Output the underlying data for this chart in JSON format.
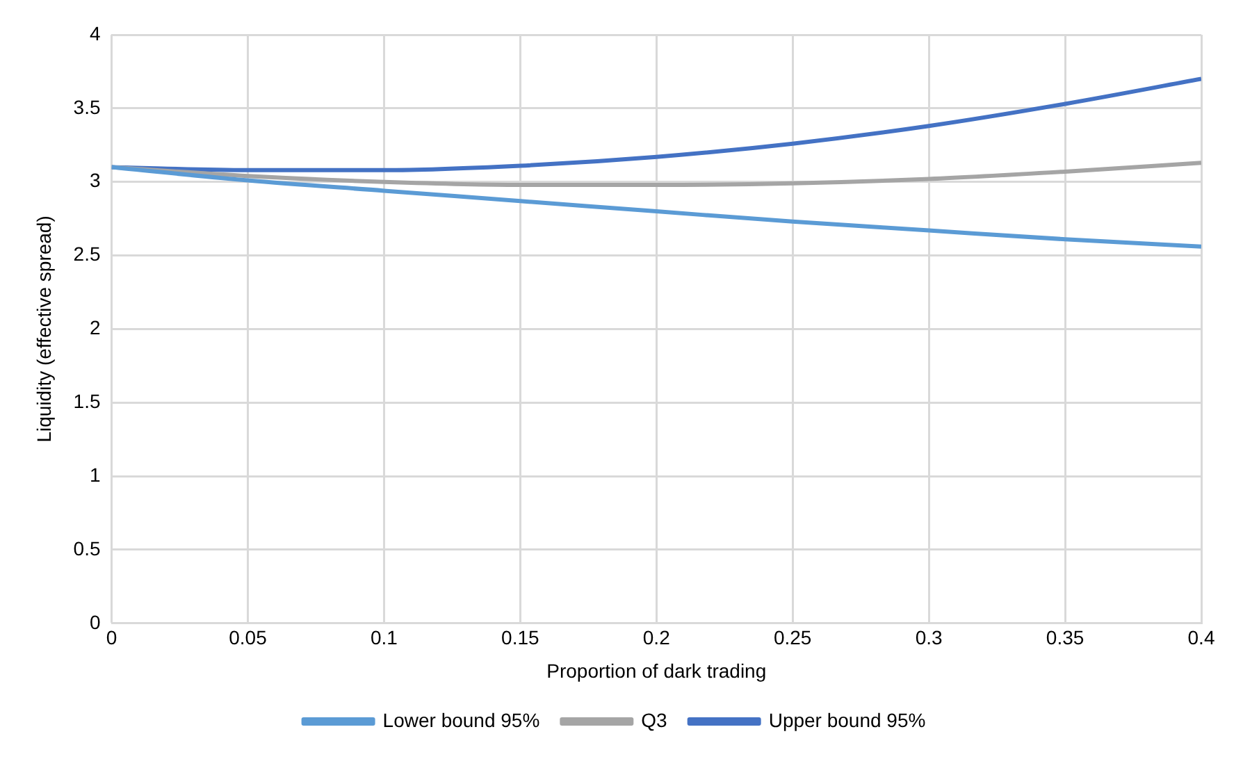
{
  "chart_data": {
    "type": "line",
    "xlabel": "Proportion of dark trading",
    "ylabel": "Liquidity (effective spread)",
    "x": [
      0,
      0.05,
      0.1,
      0.15,
      0.2,
      0.25,
      0.3,
      0.35,
      0.4
    ],
    "series": [
      {
        "name": "Lower bound 95%",
        "color": "#5b9bd5",
        "values": [
          3.1,
          3.01,
          2.94,
          2.87,
          2.8,
          2.73,
          2.67,
          2.61,
          2.56
        ]
      },
      {
        "name": "Q3",
        "color": "#a5a5a5",
        "values": [
          3.1,
          3.04,
          3.0,
          2.98,
          2.98,
          2.99,
          3.02,
          3.07,
          3.13
        ]
      },
      {
        "name": "Upper bound 95%",
        "color": "#4472c4",
        "values": [
          3.1,
          3.08,
          3.08,
          3.11,
          3.17,
          3.26,
          3.38,
          3.53,
          3.7
        ]
      }
    ],
    "xlim": [
      0,
      0.4
    ],
    "xticks": [
      0,
      0.05,
      0.1,
      0.15,
      0.2,
      0.25,
      0.3,
      0.35,
      0.4
    ],
    "ylim": [
      0,
      4
    ],
    "yticks": [
      0,
      0.5,
      1,
      1.5,
      2,
      2.5,
      3,
      3.5,
      4
    ],
    "grid": true,
    "legend": "bottom",
    "marker": "none"
  }
}
